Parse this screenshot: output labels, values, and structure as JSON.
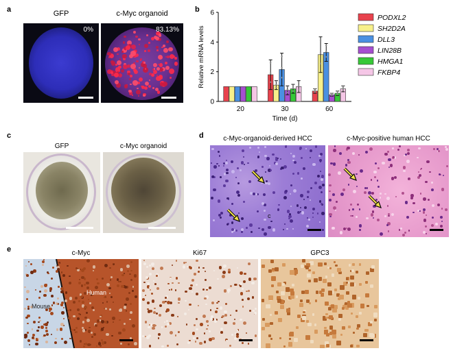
{
  "panels": {
    "a": {
      "label": "a",
      "left_caption": "GFP",
      "right_caption": "c-Myc organoid",
      "left_pct": "0%",
      "right_pct": "83.13%"
    },
    "b": {
      "label": "b"
    },
    "c": {
      "label": "c",
      "left_caption": "GFP",
      "right_caption": "c-Myc organoid"
    },
    "d": {
      "label": "d",
      "left_caption": "c-Myc-organoid-derived HCC",
      "right_caption": "c-Myc-positive human HCC",
      "inset_letter": "c"
    },
    "e": {
      "label": "e",
      "captions": [
        "c-Myc",
        "Ki67",
        "GPC3"
      ],
      "mouse_label": "Mouse",
      "human_label": "Human"
    }
  },
  "chart_data": {
    "type": "bar",
    "categories": [
      "20",
      "30",
      "60"
    ],
    "xlabel": "Time (d)",
    "ylabel": "Relative mRNA levels",
    "ylim": [
      0,
      6
    ],
    "yticks": [
      "0",
      "2",
      "4",
      "6"
    ],
    "series": [
      {
        "name": "PODXL2",
        "color": "#e8424d",
        "values": [
          1.0,
          1.8,
          0.7
        ],
        "err": [
          0,
          1.0,
          0.15
        ]
      },
      {
        "name": "SH2D2A",
        "color": "#f7f08a",
        "values": [
          1.0,
          1.1,
          3.15
        ],
        "err": [
          0,
          0.3,
          1.2
        ]
      },
      {
        "name": "DLL3",
        "color": "#4a90e2",
        "values": [
          1.0,
          2.15,
          3.3
        ],
        "err": [
          0,
          1.1,
          0.6
        ]
      },
      {
        "name": "LIN28B",
        "color": "#a64fd0",
        "values": [
          1.0,
          0.75,
          0.45
        ],
        "err": [
          0,
          0.3,
          0.1
        ]
      },
      {
        "name": "HMGA1",
        "color": "#37c837",
        "values": [
          1.0,
          0.85,
          0.55
        ],
        "err": [
          0,
          0.3,
          0.15
        ]
      },
      {
        "name": "FKBP4",
        "color": "#f5c6e6",
        "values": [
          1.0,
          1.0,
          0.85
        ],
        "err": [
          0,
          0.4,
          0.2
        ]
      }
    ]
  }
}
